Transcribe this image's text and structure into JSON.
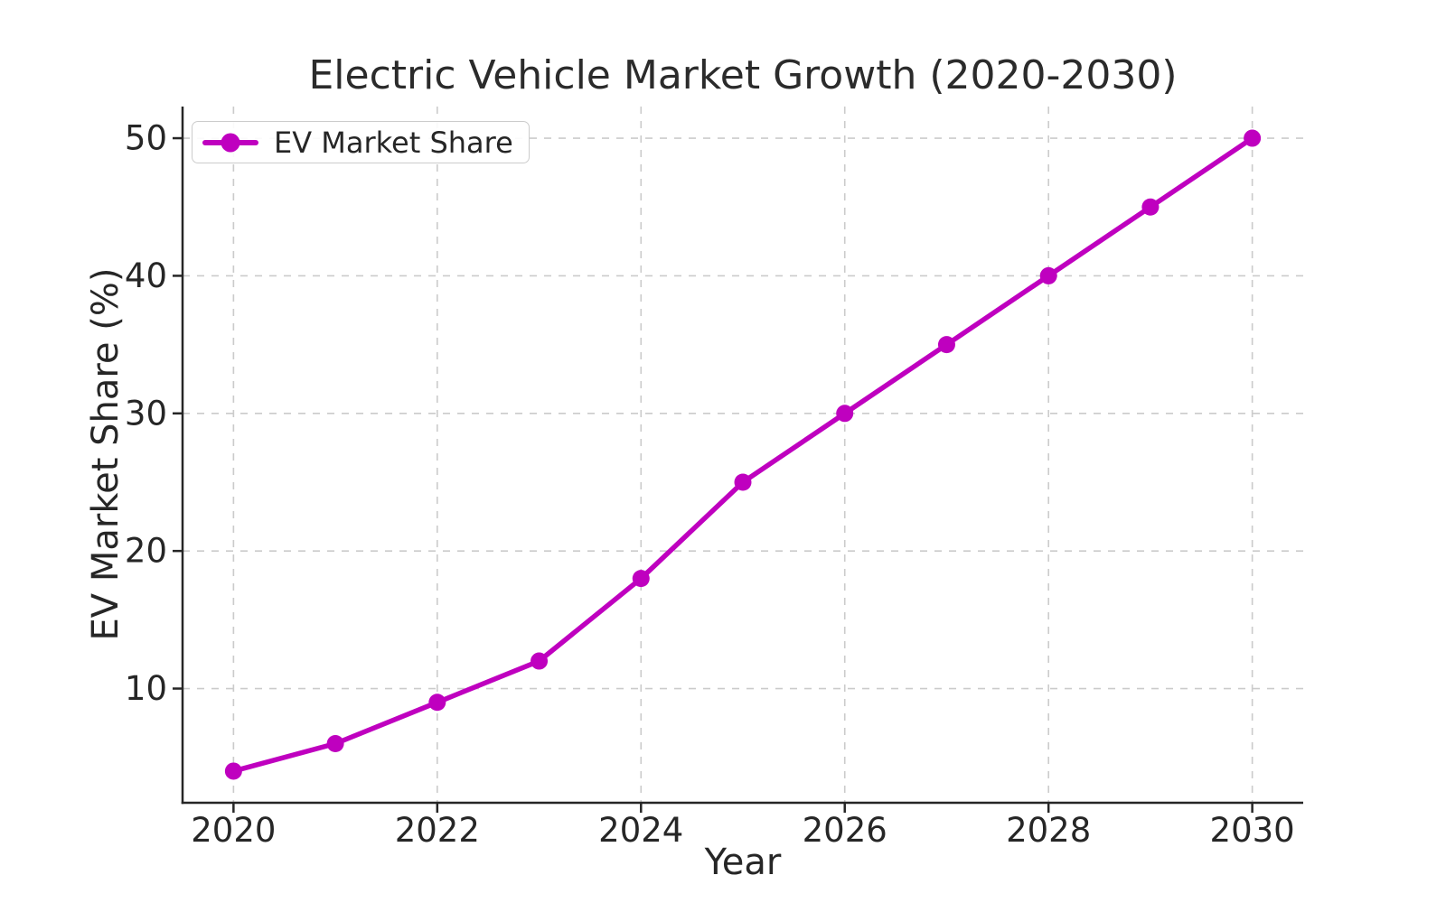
{
  "title": "Electric Vehicle Market Growth (2020-2030)",
  "legend": {
    "label": "EV Market Share",
    "position": "upper left"
  },
  "axes": {
    "xlabel": "Year",
    "ylabel": "EV Market Share (%)",
    "xtick_labels": [
      "2020",
      "2022",
      "2024",
      "2026",
      "2028",
      "2030"
    ],
    "ytick_labels": [
      "10",
      "20",
      "30",
      "40",
      "50"
    ]
  },
  "chart_data": {
    "type": "line",
    "title": "Electric Vehicle Market Growth (2020-2030)",
    "xlabel": "Year",
    "ylabel": "EV Market Share (%)",
    "x": [
      2020,
      2021,
      2022,
      2023,
      2024,
      2025,
      2026,
      2027,
      2028,
      2029,
      2030
    ],
    "series": [
      {
        "name": "EV Market Share",
        "values": [
          4,
          6,
          9,
          12,
          18,
          25,
          30,
          35,
          40,
          45,
          50
        ],
        "color": "#BF00BF",
        "marker": "circle",
        "line_width": 5.5,
        "marker_radius": 9.5
      }
    ],
    "xlim": [
      2019.5,
      2030.5
    ],
    "ylim": [
      1.7,
      52.3
    ],
    "xticks": [
      2020,
      2022,
      2024,
      2026,
      2028,
      2030
    ],
    "yticks": [
      10,
      20,
      30,
      40,
      50
    ],
    "grid": true,
    "grid_style": "dashed",
    "legend_position": "upper left"
  },
  "colors": {
    "line": "#BF00BF",
    "text": "#262626",
    "spine": "#262626",
    "grid": "#cbcbcb",
    "background": "#ffffff",
    "legend_border": "#cccccc"
  }
}
